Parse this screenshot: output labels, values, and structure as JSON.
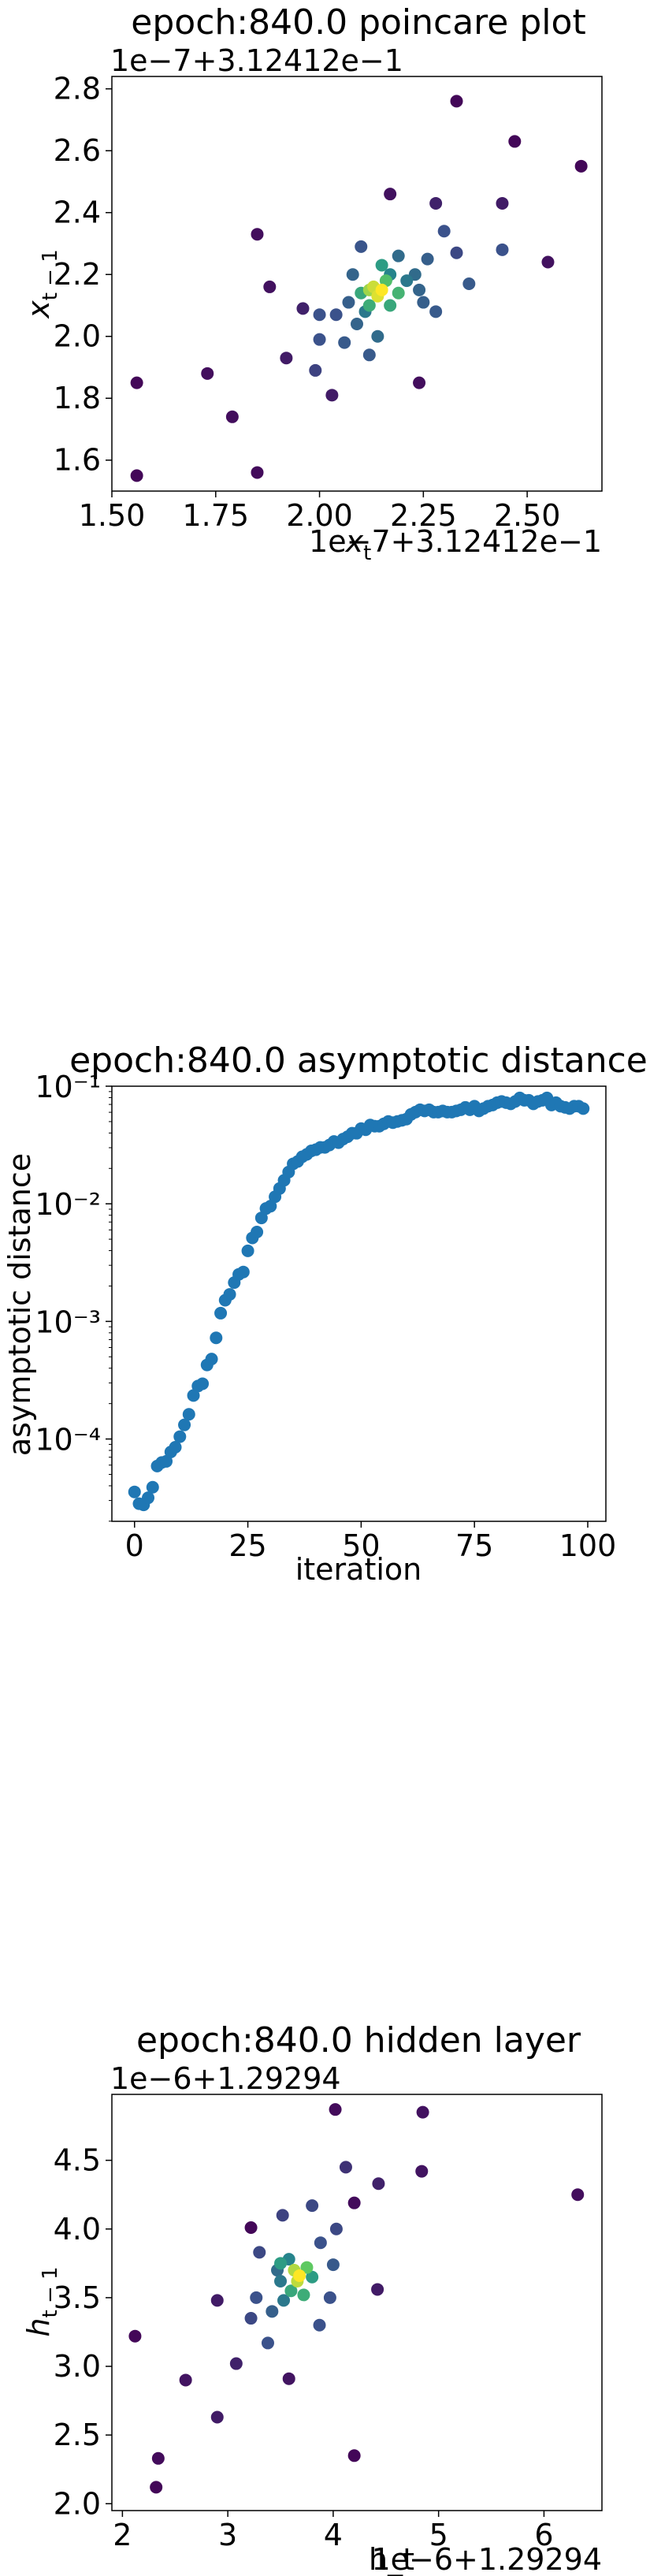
{
  "chart_data": [
    {
      "type": "scatter",
      "title": "epoch:840.0 poincare plot",
      "xlabel": "x_t",
      "ylabel": "x_{t-1}",
      "x_offset_text": "1e−7+3.12412e−1",
      "y_offset_text": "1e−7+3.12412e−1",
      "xlim": [
        1.5,
        2.68
      ],
      "ylim": [
        1.5,
        2.84
      ],
      "xticks": [
        1.5,
        1.75,
        2.0,
        2.25,
        2.5
      ],
      "xtick_labels": [
        "1.50",
        "1.75",
        "2.00",
        "2.25",
        "2.50"
      ],
      "yticks": [
        1.6,
        1.8,
        2.0,
        2.2,
        2.4,
        2.6,
        2.8
      ],
      "ytick_labels": [
        "1.6",
        "1.8",
        "2.0",
        "2.2",
        "2.4",
        "2.6",
        "2.8"
      ],
      "colormap": "viridis",
      "points": [
        {
          "x": 1.56,
          "y": 1.55,
          "c": 0.02
        },
        {
          "x": 1.56,
          "y": 1.85,
          "c": 0.02
        },
        {
          "x": 1.73,
          "y": 1.88,
          "c": 0.04
        },
        {
          "x": 1.79,
          "y": 1.74,
          "c": 0.04
        },
        {
          "x": 1.85,
          "y": 1.56,
          "c": 0.03
        },
        {
          "x": 1.85,
          "y": 2.33,
          "c": 0.04
        },
        {
          "x": 1.88,
          "y": 2.16,
          "c": 0.05
        },
        {
          "x": 1.92,
          "y": 1.93,
          "c": 0.08
        },
        {
          "x": 1.96,
          "y": 2.09,
          "c": 0.1
        },
        {
          "x": 2.03,
          "y": 1.81,
          "c": 0.08
        },
        {
          "x": 2.33,
          "y": 2.76,
          "c": 0.02
        },
        {
          "x": 2.47,
          "y": 2.63,
          "c": 0.02
        },
        {
          "x": 2.63,
          "y": 2.55,
          "c": 0.02
        },
        {
          "x": 2.55,
          "y": 2.24,
          "c": 0.05
        },
        {
          "x": 2.44,
          "y": 2.43,
          "c": 0.08
        },
        {
          "x": 2.17,
          "y": 2.46,
          "c": 0.05
        },
        {
          "x": 2.24,
          "y": 1.85,
          "c": 0.04
        },
        {
          "x": 2.28,
          "y": 2.43,
          "c": 0.1
        },
        {
          "x": 1.99,
          "y": 1.89,
          "c": 0.2
        },
        {
          "x": 2.0,
          "y": 1.99,
          "c": 0.25
        },
        {
          "x": 2.0,
          "y": 2.07,
          "c": 0.25
        },
        {
          "x": 2.04,
          "y": 2.07,
          "c": 0.25
        },
        {
          "x": 2.06,
          "y": 1.98,
          "c": 0.28
        },
        {
          "x": 2.07,
          "y": 2.11,
          "c": 0.3
        },
        {
          "x": 2.08,
          "y": 2.2,
          "c": 0.32
        },
        {
          "x": 2.09,
          "y": 2.04,
          "c": 0.32
        },
        {
          "x": 2.1,
          "y": 2.29,
          "c": 0.26
        },
        {
          "x": 2.11,
          "y": 2.08,
          "c": 0.4
        },
        {
          "x": 2.12,
          "y": 1.94,
          "c": 0.28
        },
        {
          "x": 2.14,
          "y": 2.0,
          "c": 0.35
        },
        {
          "x": 2.17,
          "y": 2.2,
          "c": 0.45
        },
        {
          "x": 2.19,
          "y": 2.26,
          "c": 0.35
        },
        {
          "x": 2.21,
          "y": 2.18,
          "c": 0.4
        },
        {
          "x": 2.23,
          "y": 2.2,
          "c": 0.35
        },
        {
          "x": 2.24,
          "y": 2.15,
          "c": 0.32
        },
        {
          "x": 2.25,
          "y": 2.11,
          "c": 0.3
        },
        {
          "x": 2.26,
          "y": 2.25,
          "c": 0.3
        },
        {
          "x": 2.28,
          "y": 2.08,
          "c": 0.28
        },
        {
          "x": 2.3,
          "y": 2.34,
          "c": 0.25
        },
        {
          "x": 2.33,
          "y": 2.27,
          "c": 0.22
        },
        {
          "x": 2.36,
          "y": 2.17,
          "c": 0.28
        },
        {
          "x": 2.44,
          "y": 2.28,
          "c": 0.25
        },
        {
          "x": 2.15,
          "y": 2.23,
          "c": 0.55
        },
        {
          "x": 2.1,
          "y": 2.14,
          "c": 0.6
        },
        {
          "x": 2.12,
          "y": 2.1,
          "c": 0.62
        },
        {
          "x": 2.17,
          "y": 2.1,
          "c": 0.6
        },
        {
          "x": 2.19,
          "y": 2.14,
          "c": 0.65
        },
        {
          "x": 2.16,
          "y": 2.18,
          "c": 0.7
        },
        {
          "x": 2.12,
          "y": 2.15,
          "c": 0.85
        },
        {
          "x": 2.14,
          "y": 2.13,
          "c": 0.95
        },
        {
          "x": 2.15,
          "y": 2.15,
          "c": 1.0
        },
        {
          "x": 2.13,
          "y": 2.16,
          "c": 0.92
        }
      ]
    },
    {
      "type": "scatter",
      "title": "epoch:840.0 asymptotic distance",
      "xlabel": "iteration",
      "ylabel": "asymptotic distance",
      "yscale": "log",
      "xlim": [
        -5,
        104
      ],
      "ylim_log10": [
        -4.7,
        -1.0
      ],
      "xticks": [
        0,
        25,
        50,
        75,
        100
      ],
      "xtick_labels": [
        "0",
        "25",
        "50",
        "75",
        "100"
      ],
      "yticks_log10": [
        -4,
        -3,
        -2,
        -1
      ],
      "ytick_labels": [
        "10⁻⁴",
        "10⁻³",
        "10⁻²",
        "10⁻¹"
      ],
      "color": "#1f77b4",
      "log10_values": [
        -4.45,
        -4.55,
        -4.56,
        -4.5,
        -4.41,
        -4.23,
        -4.2,
        -4.19,
        -4.11,
        -4.07,
        -3.98,
        -3.88,
        -3.79,
        -3.63,
        -3.55,
        -3.53,
        -3.37,
        -3.32,
        -3.14,
        -2.93,
        -2.82,
        -2.77,
        -2.67,
        -2.6,
        -2.58,
        -2.4,
        -2.29,
        -2.24,
        -2.12,
        -2.04,
        -2.02,
        -1.94,
        -1.87,
        -1.8,
        -1.73,
        -1.66,
        -1.64,
        -1.6,
        -1.58,
        -1.55,
        -1.54,
        -1.52,
        -1.52,
        -1.5,
        -1.47,
        -1.48,
        -1.45,
        -1.43,
        -1.4,
        -1.4,
        -1.36,
        -1.37,
        -1.33,
        -1.34,
        -1.34,
        -1.32,
        -1.3,
        -1.31,
        -1.3,
        -1.29,
        -1.28,
        -1.24,
        -1.22,
        -1.2,
        -1.21,
        -1.2,
        -1.22,
        -1.22,
        -1.21,
        -1.22,
        -1.22,
        -1.21,
        -1.2,
        -1.18,
        -1.2,
        -1.17,
        -1.21,
        -1.19,
        -1.17,
        -1.16,
        -1.14,
        -1.13,
        -1.14,
        -1.15,
        -1.13,
        -1.1,
        -1.12,
        -1.12,
        -1.15,
        -1.13,
        -1.12,
        -1.1,
        -1.16,
        -1.14,
        -1.17,
        -1.18,
        -1.19,
        -1.17,
        -1.17,
        -1.19
      ]
    },
    {
      "type": "scatter",
      "title": "epoch:840.0 hidden layer",
      "xlabel": "h_t",
      "ylabel": "h_{t-1}",
      "x_offset_text": "1e−6+1.29294",
      "y_offset_text": "1e−6+1.29294",
      "xlim": [
        1.9,
        6.55
      ],
      "ylim": [
        1.95,
        4.98
      ],
      "xticks": [
        2,
        3,
        4,
        5,
        6
      ],
      "xtick_labels": [
        "2",
        "3",
        "4",
        "5",
        "6"
      ],
      "yticks": [
        2.0,
        2.5,
        3.0,
        3.5,
        4.0,
        4.5
      ],
      "ytick_labels": [
        "2.0",
        "2.5",
        "3.0",
        "3.5",
        "4.0",
        "4.5"
      ],
      "colormap": "viridis",
      "points": [
        {
          "x": 2.12,
          "y": 3.22,
          "c": 0.02
        },
        {
          "x": 2.32,
          "y": 2.12,
          "c": 0.02
        },
        {
          "x": 2.34,
          "y": 2.33,
          "c": 0.03
        },
        {
          "x": 2.6,
          "y": 2.9,
          "c": 0.06
        },
        {
          "x": 2.9,
          "y": 3.48,
          "c": 0.08
        },
        {
          "x": 2.9,
          "y": 2.63,
          "c": 0.08
        },
        {
          "x": 3.08,
          "y": 3.02,
          "c": 0.1
        },
        {
          "x": 3.22,
          "y": 4.01,
          "c": 0.02
        },
        {
          "x": 3.58,
          "y": 2.91,
          "c": 0.06
        },
        {
          "x": 4.02,
          "y": 4.87,
          "c": 0.03
        },
        {
          "x": 4.2,
          "y": 4.19,
          "c": 0.03
        },
        {
          "x": 4.2,
          "y": 2.35,
          "c": 0.02
        },
        {
          "x": 4.42,
          "y": 3.56,
          "c": 0.08
        },
        {
          "x": 4.43,
          "y": 4.33,
          "c": 0.1
        },
        {
          "x": 4.85,
          "y": 4.85,
          "c": 0.05
        },
        {
          "x": 4.84,
          "y": 4.42,
          "c": 0.06
        },
        {
          "x": 6.32,
          "y": 4.25,
          "c": 0.04
        },
        {
          "x": 3.22,
          "y": 3.35,
          "c": 0.22
        },
        {
          "x": 3.27,
          "y": 3.5,
          "c": 0.25
        },
        {
          "x": 3.3,
          "y": 3.83,
          "c": 0.22
        },
        {
          "x": 3.38,
          "y": 3.17,
          "c": 0.25
        },
        {
          "x": 3.42,
          "y": 3.4,
          "c": 0.3
        },
        {
          "x": 3.47,
          "y": 3.7,
          "c": 0.35
        },
        {
          "x": 3.5,
          "y": 3.62,
          "c": 0.4
        },
        {
          "x": 3.53,
          "y": 3.48,
          "c": 0.4
        },
        {
          "x": 3.58,
          "y": 3.78,
          "c": 0.45
        },
        {
          "x": 3.52,
          "y": 4.1,
          "c": 0.2
        },
        {
          "x": 3.8,
          "y": 4.17,
          "c": 0.22
        },
        {
          "x": 3.88,
          "y": 3.9,
          "c": 0.25
        },
        {
          "x": 3.87,
          "y": 3.3,
          "c": 0.25
        },
        {
          "x": 3.97,
          "y": 3.5,
          "c": 0.25
        },
        {
          "x": 4.0,
          "y": 3.74,
          "c": 0.28
        },
        {
          "x": 4.03,
          "y": 4.0,
          "c": 0.22
        },
        {
          "x": 4.12,
          "y": 4.45,
          "c": 0.15
        },
        {
          "x": 3.5,
          "y": 3.75,
          "c": 0.55
        },
        {
          "x": 3.6,
          "y": 3.55,
          "c": 0.6
        },
        {
          "x": 3.8,
          "y": 3.65,
          "c": 0.55
        },
        {
          "x": 3.72,
          "y": 3.52,
          "c": 0.62
        },
        {
          "x": 3.75,
          "y": 3.72,
          "c": 0.75
        },
        {
          "x": 3.66,
          "y": 3.62,
          "c": 0.9
        },
        {
          "x": 3.68,
          "y": 3.66,
          "c": 1.0
        },
        {
          "x": 3.63,
          "y": 3.7,
          "c": 0.88
        }
      ]
    }
  ]
}
